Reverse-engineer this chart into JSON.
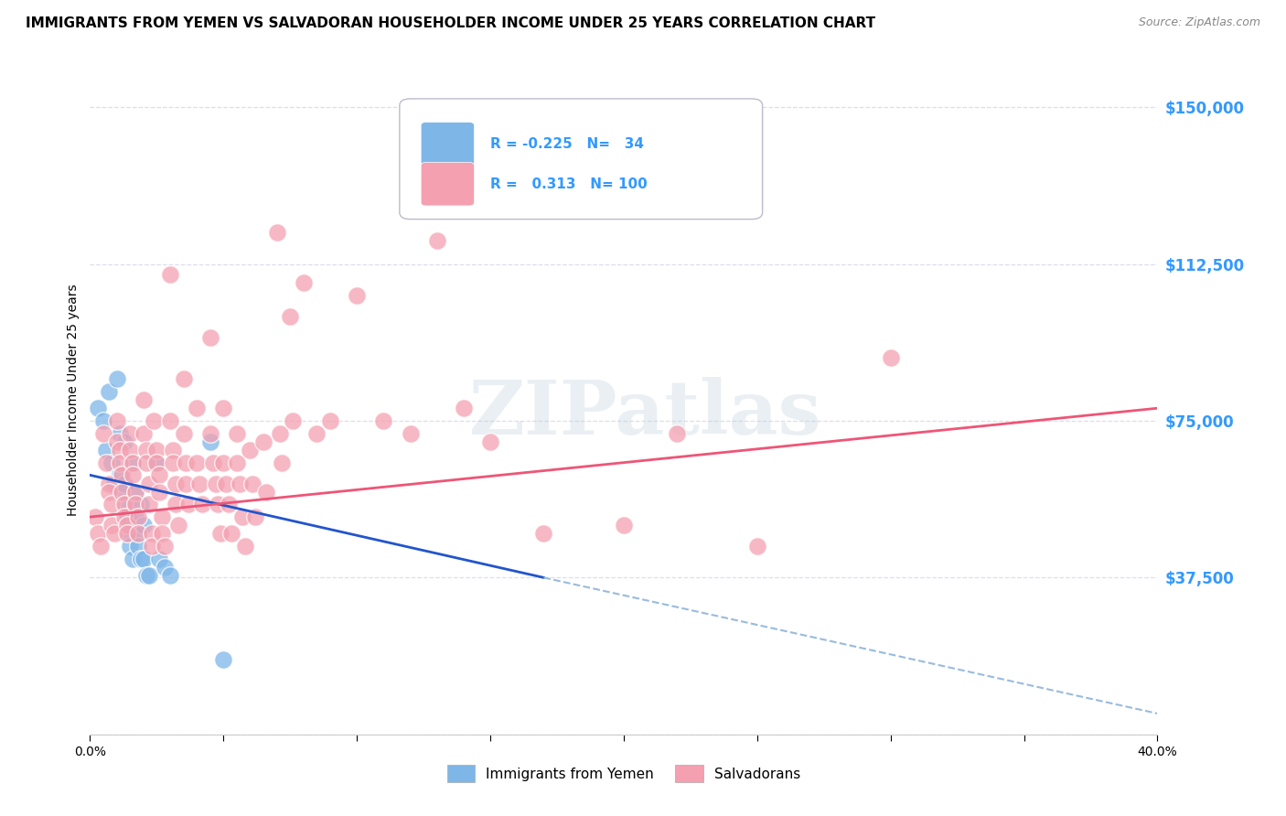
{
  "title": "IMMIGRANTS FROM YEMEN VS SALVADORAN HOUSEHOLDER INCOME UNDER 25 YEARS CORRELATION CHART",
  "source": "Source: ZipAtlas.com",
  "ylabel": "Householder Income Under 25 years",
  "xlim": [
    0.0,
    40.0
  ],
  "ylim": [
    0,
    160000
  ],
  "yticks": [
    0,
    37500,
    75000,
    112500,
    150000
  ],
  "ytick_labels": [
    "",
    "$37,500",
    "$75,000",
    "$112,500",
    "$150,000"
  ],
  "color_blue": "#7EB6E8",
  "color_pink": "#F4A0B0",
  "color_blue_line": "#2255CC",
  "color_pink_line": "#EE5577",
  "color_dashed": "#99BBDD",
  "watermark": "ZIPatlas",
  "blue_points": [
    [
      0.3,
      78000
    ],
    [
      0.5,
      75000
    ],
    [
      0.6,
      68000
    ],
    [
      0.7,
      82000
    ],
    [
      0.8,
      65000
    ],
    [
      0.9,
      60000
    ],
    [
      1.0,
      85000
    ],
    [
      1.1,
      72000
    ],
    [
      1.1,
      62000
    ],
    [
      1.2,
      58000
    ],
    [
      1.3,
      70000
    ],
    [
      1.3,
      60000
    ],
    [
      1.4,
      55000
    ],
    [
      1.4,
      52000
    ],
    [
      1.5,
      48000
    ],
    [
      1.5,
      45000
    ],
    [
      1.6,
      42000
    ],
    [
      1.6,
      65000
    ],
    [
      1.7,
      58000
    ],
    [
      1.7,
      52000
    ],
    [
      1.8,
      48000
    ],
    [
      1.8,
      45000
    ],
    [
      1.9,
      42000
    ],
    [
      1.9,
      55000
    ],
    [
      2.0,
      50000
    ],
    [
      2.0,
      42000
    ],
    [
      2.1,
      38000
    ],
    [
      2.2,
      38000
    ],
    [
      2.5,
      65000
    ],
    [
      2.6,
      42000
    ],
    [
      2.8,
      40000
    ],
    [
      3.0,
      38000
    ],
    [
      4.5,
      70000
    ],
    [
      5.0,
      18000
    ]
  ],
  "pink_points": [
    [
      0.2,
      52000
    ],
    [
      0.3,
      48000
    ],
    [
      0.4,
      45000
    ],
    [
      0.5,
      72000
    ],
    [
      0.6,
      65000
    ],
    [
      0.7,
      60000
    ],
    [
      0.7,
      58000
    ],
    [
      0.8,
      55000
    ],
    [
      0.8,
      50000
    ],
    [
      0.9,
      48000
    ],
    [
      1.0,
      75000
    ],
    [
      1.0,
      70000
    ],
    [
      1.1,
      68000
    ],
    [
      1.1,
      65000
    ],
    [
      1.2,
      62000
    ],
    [
      1.2,
      58000
    ],
    [
      1.3,
      55000
    ],
    [
      1.3,
      52000
    ],
    [
      1.4,
      50000
    ],
    [
      1.4,
      48000
    ],
    [
      1.5,
      72000
    ],
    [
      1.5,
      68000
    ],
    [
      1.6,
      65000
    ],
    [
      1.6,
      62000
    ],
    [
      1.7,
      58000
    ],
    [
      1.7,
      55000
    ],
    [
      1.8,
      52000
    ],
    [
      1.8,
      48000
    ],
    [
      2.0,
      80000
    ],
    [
      2.0,
      72000
    ],
    [
      2.1,
      68000
    ],
    [
      2.1,
      65000
    ],
    [
      2.2,
      60000
    ],
    [
      2.2,
      55000
    ],
    [
      2.3,
      48000
    ],
    [
      2.3,
      45000
    ],
    [
      2.4,
      75000
    ],
    [
      2.5,
      68000
    ],
    [
      2.5,
      65000
    ],
    [
      2.6,
      62000
    ],
    [
      2.6,
      58000
    ],
    [
      2.7,
      52000
    ],
    [
      2.7,
      48000
    ],
    [
      2.8,
      45000
    ],
    [
      3.0,
      110000
    ],
    [
      3.0,
      75000
    ],
    [
      3.1,
      68000
    ],
    [
      3.1,
      65000
    ],
    [
      3.2,
      60000
    ],
    [
      3.2,
      55000
    ],
    [
      3.3,
      50000
    ],
    [
      3.5,
      85000
    ],
    [
      3.5,
      72000
    ],
    [
      3.6,
      65000
    ],
    [
      3.6,
      60000
    ],
    [
      3.7,
      55000
    ],
    [
      4.0,
      78000
    ],
    [
      4.0,
      65000
    ],
    [
      4.1,
      60000
    ],
    [
      4.2,
      55000
    ],
    [
      4.5,
      95000
    ],
    [
      4.5,
      72000
    ],
    [
      4.6,
      65000
    ],
    [
      4.7,
      60000
    ],
    [
      4.8,
      55000
    ],
    [
      4.9,
      48000
    ],
    [
      5.0,
      78000
    ],
    [
      5.0,
      65000
    ],
    [
      5.1,
      60000
    ],
    [
      5.2,
      55000
    ],
    [
      5.3,
      48000
    ],
    [
      5.5,
      72000
    ],
    [
      5.5,
      65000
    ],
    [
      5.6,
      60000
    ],
    [
      5.7,
      52000
    ],
    [
      5.8,
      45000
    ],
    [
      6.0,
      68000
    ],
    [
      6.1,
      60000
    ],
    [
      6.2,
      52000
    ],
    [
      6.5,
      70000
    ],
    [
      6.6,
      58000
    ],
    [
      7.0,
      120000
    ],
    [
      7.1,
      72000
    ],
    [
      7.2,
      65000
    ],
    [
      7.5,
      100000
    ],
    [
      7.6,
      75000
    ],
    [
      8.0,
      108000
    ],
    [
      8.5,
      72000
    ],
    [
      9.0,
      75000
    ],
    [
      10.0,
      105000
    ],
    [
      11.0,
      75000
    ],
    [
      12.0,
      72000
    ],
    [
      13.0,
      118000
    ],
    [
      14.0,
      78000
    ],
    [
      15.0,
      70000
    ],
    [
      17.0,
      48000
    ],
    [
      20.0,
      50000
    ],
    [
      22.0,
      72000
    ],
    [
      25.0,
      45000
    ],
    [
      30.0,
      90000
    ]
  ],
  "blue_line": [
    [
      0.0,
      62000
    ],
    [
      17.0,
      37500
    ]
  ],
  "pink_line": [
    [
      0.0,
      52000
    ],
    [
      40.0,
      78000
    ]
  ],
  "dashed_line": [
    [
      17.0,
      37500
    ],
    [
      40.0,
      5000
    ]
  ],
  "title_fontsize": 11,
  "axis_label_fontsize": 10,
  "tick_label_fontsize": 10,
  "background_color": "#FFFFFF",
  "grid_color": "#DDDDEE",
  "ytick_color": "#3399FF"
}
